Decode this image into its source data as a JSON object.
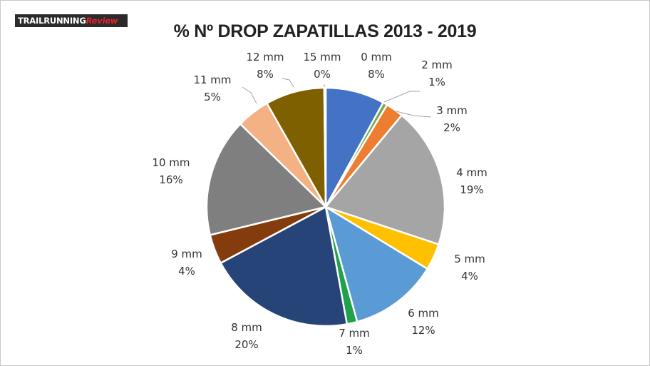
{
  "logo": {
    "part1": "TRAILRUNNING",
    "part2": "Review"
  },
  "chart_data": {
    "type": "pie",
    "title": "% Nº DROP ZAPATILLAS 2013 - 2019",
    "legend": "none",
    "slices": [
      {
        "category": "0 mm",
        "label": "8%",
        "value": 8,
        "color": "#4472c4"
      },
      {
        "category": "2 mm",
        "label": "1%",
        "value": 0.6,
        "color": "#70ad47"
      },
      {
        "category": "3 mm",
        "label": "2%",
        "value": 2.4,
        "color": "#ed7d31"
      },
      {
        "category": "4 mm",
        "label": "19%",
        "value": 19,
        "color": "#a5a5a5"
      },
      {
        "category": "5 mm",
        "label": "4%",
        "value": 3.6,
        "color": "#ffc000"
      },
      {
        "category": "6 mm",
        "label": "12%",
        "value": 12,
        "color": "#5b9bd5"
      },
      {
        "category": "7 mm",
        "label": "1%",
        "value": 1.4,
        "color": "#1fa24a"
      },
      {
        "category": "8 mm",
        "label": "20%",
        "value": 20,
        "color": "#264478"
      },
      {
        "category": "9 mm",
        "label": "4%",
        "value": 4,
        "color": "#843c0c"
      },
      {
        "category": "10 mm",
        "label": "16%",
        "value": 16,
        "color": "#7f7f7f"
      },
      {
        "category": "11 mm",
        "label": "5%",
        "value": 4.5,
        "color": "#f4b183"
      },
      {
        "category": "12 mm",
        "label": "8%",
        "value": 8,
        "color": "#7f6000"
      },
      {
        "category": "15 mm",
        "label": "0%",
        "value": 0.2,
        "color": "#203864"
      }
    ]
  }
}
